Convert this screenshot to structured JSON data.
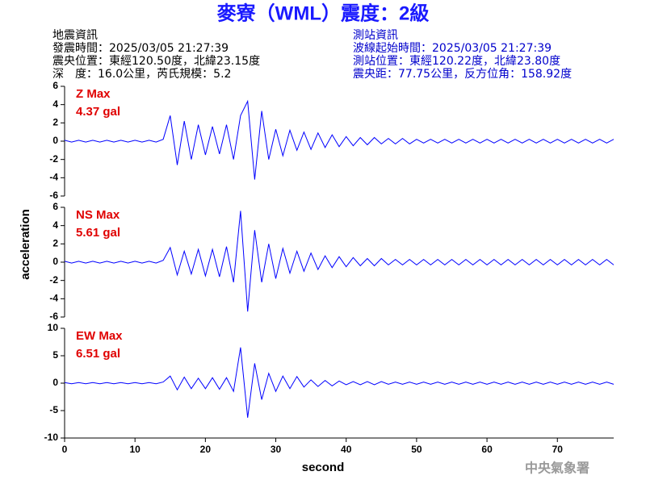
{
  "header": {
    "title": "麥寮（WML）震度：2級",
    "left": [
      "地震資訊",
      "發震時間：2025/03/05 21:27:39",
      "震央位置：東經120.50度，北緯23.15度",
      "深　度：16.0公里，芮氏規模：5.2"
    ],
    "right": [
      "測站資訊",
      "波線起始時間：2025/03/05 21:27:39",
      "測站位置：東經120.22度，北緯23.80度",
      "震央距：77.75公里，反方位角：158.92度"
    ]
  },
  "chart_data": [
    {
      "type": "line",
      "color": "#0000ff",
      "annotations": [
        "Z Max",
        "4.37 gal"
      ],
      "x": [
        0,
        1,
        2,
        3,
        4,
        5,
        6,
        7,
        8,
        9,
        10,
        11,
        12,
        13,
        14,
        15,
        16,
        17,
        18,
        19,
        20,
        21,
        22,
        23,
        24,
        25,
        26,
        27,
        28,
        29,
        30,
        31,
        32,
        33,
        34,
        35,
        36,
        37,
        38,
        39,
        40,
        41,
        42,
        43,
        44,
        45,
        46,
        47,
        48,
        49,
        50,
        51,
        52,
        53,
        54,
        55,
        56,
        57,
        58,
        59,
        60,
        61,
        62,
        63,
        64,
        65,
        66,
        67,
        68,
        69,
        70,
        71,
        72,
        73,
        74,
        75,
        76,
        77,
        78
      ],
      "values": [
        0.1,
        -0.1,
        0.1,
        -0.1,
        0.1,
        -0.1,
        0.1,
        -0.1,
        0.1,
        -0.1,
        0.1,
        -0.1,
        0.1,
        -0.1,
        0.2,
        2.8,
        -2.6,
        2.2,
        -2.0,
        1.8,
        -1.5,
        1.6,
        -1.4,
        1.8,
        -2.0,
        2.8,
        4.37,
        -4.2,
        3.3,
        -2.0,
        1.3,
        -1.6,
        1.2,
        -1.0,
        1.0,
        -0.9,
        0.9,
        -0.7,
        0.7,
        -0.6,
        0.5,
        -0.5,
        0.4,
        -0.4,
        0.4,
        -0.3,
        0.3,
        -0.3,
        0.3,
        -0.3,
        0.2,
        -0.2,
        0.2,
        -0.2,
        0.2,
        -0.2,
        0.2,
        -0.2,
        0.2,
        -0.2,
        0.2,
        -0.2,
        0.2,
        -0.2,
        0.2,
        -0.2,
        0.2,
        -0.2,
        0.2,
        -0.2,
        0.2,
        -0.2,
        0.2,
        -0.2,
        0.2,
        -0.2,
        0.2,
        -0.2,
        0.2
      ],
      "xlim": [
        0,
        78
      ],
      "ylim": [
        -6,
        6
      ],
      "yticks": [
        -6,
        -4,
        -2,
        0,
        2,
        4,
        6
      ]
    },
    {
      "type": "line",
      "color": "#0000ff",
      "annotations": [
        "NS Max",
        "5.61 gal"
      ],
      "ylabel": "acceleration",
      "x": [
        0,
        1,
        2,
        3,
        4,
        5,
        6,
        7,
        8,
        9,
        10,
        11,
        12,
        13,
        14,
        15,
        16,
        17,
        18,
        19,
        20,
        21,
        22,
        23,
        24,
        25,
        26,
        27,
        28,
        29,
        30,
        31,
        32,
        33,
        34,
        35,
        36,
        37,
        38,
        39,
        40,
        41,
        42,
        43,
        44,
        45,
        46,
        47,
        48,
        49,
        50,
        51,
        52,
        53,
        54,
        55,
        56,
        57,
        58,
        59,
        60,
        61,
        62,
        63,
        64,
        65,
        66,
        67,
        68,
        69,
        70,
        71,
        72,
        73,
        74,
        75,
        76,
        77,
        78
      ],
      "values": [
        0.1,
        -0.1,
        0.1,
        -0.1,
        0.1,
        -0.1,
        0.1,
        -0.1,
        0.1,
        -0.1,
        0.1,
        -0.1,
        0.1,
        -0.1,
        0.2,
        1.6,
        -1.4,
        1.2,
        -1.3,
        1.4,
        -1.5,
        1.4,
        -1.6,
        1.7,
        -2.2,
        5.61,
        -5.4,
        3.5,
        -2.2,
        2.0,
        -1.8,
        1.5,
        -1.2,
        1.2,
        -1.0,
        1.0,
        -0.8,
        0.7,
        -0.6,
        0.6,
        -0.5,
        0.5,
        -0.4,
        0.4,
        -0.4,
        0.4,
        -0.3,
        0.3,
        -0.3,
        0.3,
        -0.3,
        0.3,
        -0.3,
        0.3,
        -0.3,
        0.3,
        -0.3,
        0.3,
        -0.3,
        0.3,
        -0.3,
        0.3,
        -0.3,
        0.3,
        -0.3,
        0.3,
        -0.3,
        0.3,
        -0.3,
        0.3,
        -0.3,
        0.3,
        -0.3,
        0.3,
        -0.3,
        0.3,
        -0.3,
        0.3,
        -0.3
      ],
      "xlim": [
        0,
        78
      ],
      "ylim": [
        -6,
        6
      ],
      "yticks": [
        -6,
        -4,
        -2,
        0,
        2,
        4,
        6
      ]
    },
    {
      "type": "line",
      "color": "#0000ff",
      "annotations": [
        "EW Max",
        "6.51 gal"
      ],
      "xlabel": "second",
      "x": [
        0,
        1,
        2,
        3,
        4,
        5,
        6,
        7,
        8,
        9,
        10,
        11,
        12,
        13,
        14,
        15,
        16,
        17,
        18,
        19,
        20,
        21,
        22,
        23,
        24,
        25,
        26,
        27,
        28,
        29,
        30,
        31,
        32,
        33,
        34,
        35,
        36,
        37,
        38,
        39,
        40,
        41,
        42,
        43,
        44,
        45,
        46,
        47,
        48,
        49,
        50,
        51,
        52,
        53,
        54,
        55,
        56,
        57,
        58,
        59,
        60,
        61,
        62,
        63,
        64,
        65,
        66,
        67,
        68,
        69,
        70,
        71,
        72,
        73,
        74,
        75,
        76,
        77,
        78
      ],
      "values": [
        0.1,
        -0.1,
        0.1,
        -0.1,
        0.1,
        -0.1,
        0.1,
        -0.1,
        0.1,
        -0.1,
        0.1,
        -0.1,
        0.1,
        -0.1,
        0.2,
        1.3,
        -1.2,
        1.1,
        -1.0,
        0.9,
        -1.0,
        1.0,
        -1.1,
        1.0,
        -1.5,
        6.51,
        -6.3,
        3.6,
        -3.0,
        1.8,
        -1.5,
        1.3,
        -1.0,
        1.2,
        -0.7,
        0.6,
        -0.6,
        0.5,
        -0.5,
        0.4,
        -0.3,
        0.3,
        -0.3,
        0.3,
        -0.3,
        0.3,
        -0.2,
        0.2,
        -0.2,
        0.2,
        -0.2,
        0.2,
        -0.2,
        0.2,
        -0.2,
        0.2,
        -0.2,
        0.2,
        -0.2,
        0.2,
        -0.2,
        0.2,
        -0.2,
        0.2,
        -0.2,
        0.2,
        -0.2,
        0.2,
        -0.2,
        0.2,
        -0.2,
        0.2,
        -0.2,
        0.2,
        -0.2,
        0.2,
        -0.2,
        0.2,
        -0.2
      ],
      "xlim": [
        0,
        78
      ],
      "ylim": [
        -10,
        10
      ],
      "yticks": [
        -10,
        -5,
        0,
        5,
        10
      ],
      "xticks": [
        0,
        10,
        20,
        30,
        40,
        50,
        60,
        70
      ]
    }
  ],
  "footer": "中央氣象署"
}
